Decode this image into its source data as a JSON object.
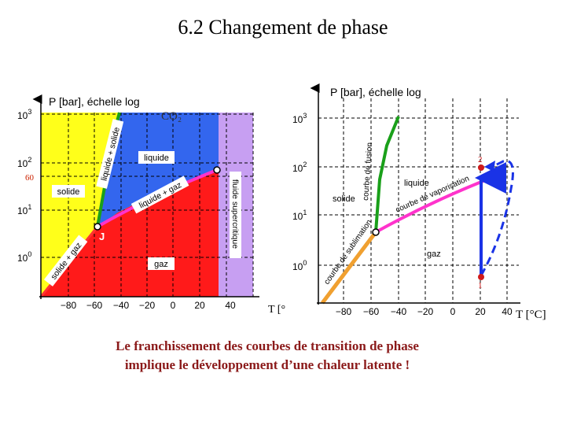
{
  "page": {
    "title": "6.2   Changement de phase",
    "caption_line1": "Le franchissement des courbes de transition de phase",
    "caption_line2": "implique le développement d’une chaleur latente !"
  },
  "left_diagram": {
    "substance_label": "CO₂",
    "y_axis_label": "P [bar], échelle log",
    "x_axis_label": "T [°",
    "y_ticks": [
      {
        "base": "10",
        "exp": "3"
      },
      {
        "base": "10",
        "exp": "2"
      },
      {
        "base": "10",
        "exp": "1"
      },
      {
        "base": "10",
        "exp": "0"
      }
    ],
    "y_extra_tick": "60",
    "x_ticks": [
      "−80",
      "−60",
      "−40",
      "−20",
      "0",
      "20",
      "40"
    ],
    "regions": {
      "solid": "solide",
      "liquid": "liquide",
      "gas": "gaz",
      "supercritical": "fluide supercritique"
    },
    "curves": {
      "liquid_solid": "liquide + solide",
      "liquid_gas": "liquide + gaz",
      "solid_gas": "solide + gaz"
    },
    "triple_point": "J",
    "colors": {
      "solid": "#ffff1a",
      "liquid": "#3366ee",
      "gas": "#ff1a1a",
      "supercritical": "#c79ff2",
      "fusion_curve": "#1aa01a",
      "vaporization_curve": "#ff33cc",
      "sublimation_curve": "#ff3333"
    }
  },
  "right_diagram": {
    "y_axis_label": "P [bar], échelle log",
    "x_axis_label": "T [°C]",
    "y_ticks": [
      {
        "base": "10",
        "exp": "3"
      },
      {
        "base": "10",
        "exp": "2"
      },
      {
        "base": "10",
        "exp": "1"
      },
      {
        "base": "10",
        "exp": "0"
      }
    ],
    "x_ticks": [
      "−80",
      "−60",
      "−40",
      "−20",
      "0",
      "20",
      "40"
    ],
    "regions": {
      "solid": "solide",
      "liquid": "liquide",
      "gas": "gaz"
    },
    "curves": {
      "fusion": "courbe de fusion",
      "vaporization": "courbe de vaporisation",
      "sublimation": "courbe de sublimation"
    },
    "point_1": "1",
    "point_2": "2",
    "colors": {
      "fusion_curve": "#1aa01a",
      "vaporization_curve": "#ff33cc",
      "sublimation_curve": "#f0a030",
      "path": "#1a33e6",
      "points": "#d01a1a"
    }
  }
}
